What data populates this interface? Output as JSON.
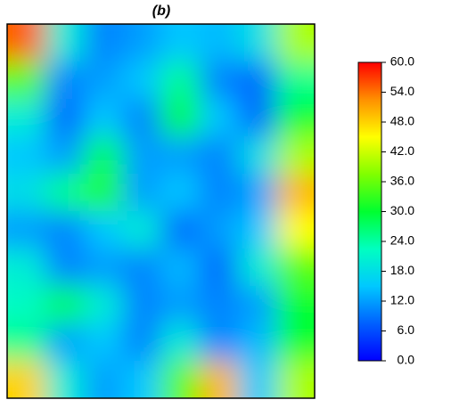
{
  "chart_data": {
    "type": "heatmap",
    "title": "(b)",
    "values": [
      [
        55,
        20,
        10,
        12,
        15,
        14,
        18,
        40
      ],
      [
        35,
        10,
        12,
        15,
        25,
        10,
        8,
        25
      ],
      [
        20,
        8,
        15,
        10,
        30,
        15,
        8,
        30
      ],
      [
        15,
        12,
        28,
        12,
        12,
        10,
        18,
        40
      ],
      [
        18,
        25,
        32,
        12,
        15,
        10,
        12,
        50
      ],
      [
        12,
        10,
        15,
        20,
        8,
        12,
        15,
        45
      ],
      [
        20,
        10,
        12,
        10,
        14,
        8,
        20,
        35
      ],
      [
        22,
        28,
        20,
        10,
        12,
        10,
        12,
        30
      ],
      [
        25,
        12,
        15,
        10,
        20,
        10,
        14,
        30
      ],
      [
        48,
        20,
        12,
        15,
        35,
        50,
        15,
        40
      ]
    ],
    "colormap": [
      "#0000ff",
      "#0060ff",
      "#00c8ff",
      "#00ffc0",
      "#00ff30",
      "#80ff00",
      "#ffff00",
      "#ff9000",
      "#ff0000"
    ],
    "zlim": [
      0,
      60
    ],
    "zticks": [
      {
        "value": 0,
        "label": "0.0"
      },
      {
        "value": 6,
        "label": "6.0"
      },
      {
        "value": 12,
        "label": "12.0"
      },
      {
        "value": 18,
        "label": "18.0"
      },
      {
        "value": 24,
        "label": "24.0"
      },
      {
        "value": 30,
        "label": "30.0"
      },
      {
        "value": 36,
        "label": "36.0"
      },
      {
        "value": 42,
        "label": "42.0"
      },
      {
        "value": 48,
        "label": "48.0"
      },
      {
        "value": 54,
        "label": "54.0"
      },
      {
        "value": 60,
        "label": "60.0"
      }
    ]
  }
}
